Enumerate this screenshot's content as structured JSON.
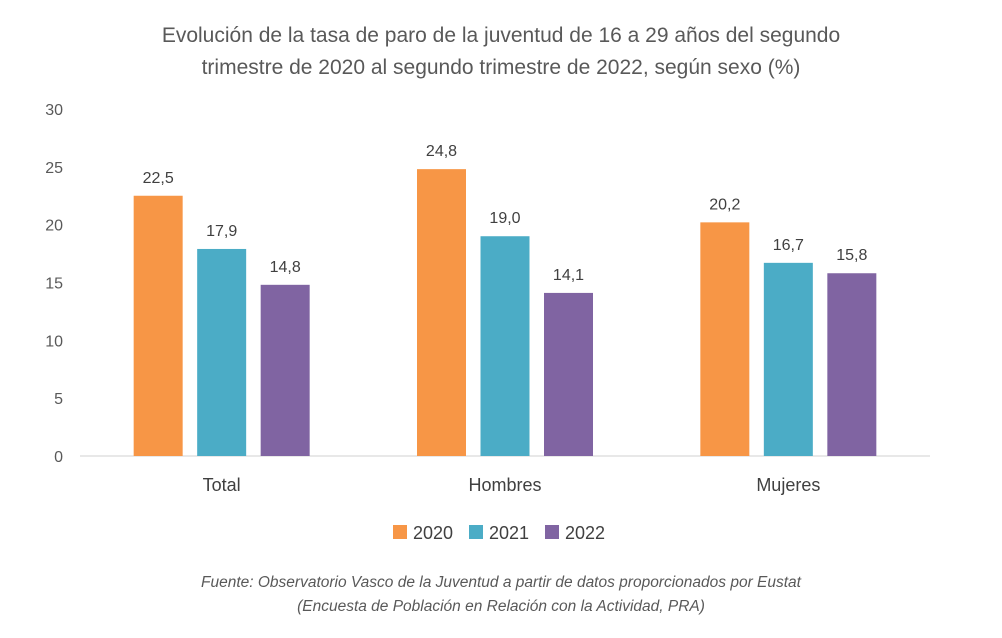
{
  "chart_data": {
    "type": "bar",
    "title": "Evolución de la tasa de paro de la juventud de 16 a 29 años del segundo trimestre de 2020 al segundo trimestre de 2022, según sexo (%)",
    "title_lines": [
      "Evolución de la tasa de paro de la juventud de 16 a 29 años del segundo",
      "trimestre de 2020 al segundo trimestre de 2022, según sexo (%)"
    ],
    "categories": [
      "Total",
      "Hombres",
      "Mujeres"
    ],
    "series": [
      {
        "name": "2020",
        "color": "#F79646",
        "values": [
          22.5,
          24.8,
          20.2
        ],
        "labels": [
          "22,5",
          "24,8",
          "20,2"
        ]
      },
      {
        "name": "2021",
        "color": "#4BACC6",
        "values": [
          17.9,
          19.0,
          16.7
        ],
        "labels": [
          "17,9",
          "19,0",
          "16,7"
        ]
      },
      {
        "name": "2022",
        "color": "#8064A2",
        "values": [
          14.8,
          14.1,
          15.8
        ],
        "labels": [
          "14,8",
          "14,1",
          "15,8"
        ]
      }
    ],
    "xlabel": "",
    "ylabel": "",
    "ylim": [
      0,
      30
    ],
    "yticks": [
      0,
      5,
      10,
      15,
      20,
      25,
      30
    ],
    "grid": false,
    "legend_position": "bottom",
    "source_lines": [
      "Fuente: Observatorio Vasco de la Juventud a partir de datos proporcionados por Eustat",
      "(Encuesta de Población en Relación con la Actividad, PRA)"
    ]
  }
}
